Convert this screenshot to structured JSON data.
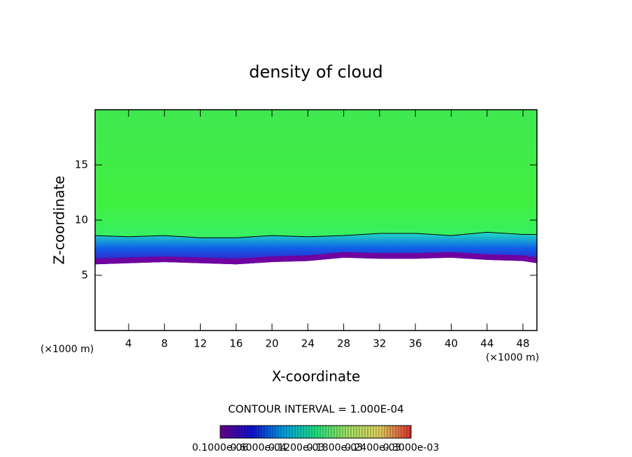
{
  "chart_data": {
    "type": "contour",
    "title": "density of cloud",
    "x_label": "X-coordinate",
    "y_label": "Z-coordinate",
    "x_unit": "(×1000 m)",
    "y_unit": "(×1000 m)",
    "xlim": [
      0.26,
      49.56
    ],
    "ylim": [
      0,
      20
    ],
    "xticks": [
      4,
      8,
      12,
      16,
      20,
      24,
      28,
      32,
      36,
      40,
      44,
      48
    ],
    "yticks": [
      5,
      10,
      15
    ],
    "x": [
      0.26,
      4,
      8,
      12,
      16,
      20,
      24,
      28,
      32,
      36,
      40,
      44,
      48,
      49.56
    ],
    "base": [
      6.0,
      6.1,
      6.2,
      6.1,
      6.0,
      6.2,
      6.3,
      6.6,
      6.5,
      6.5,
      6.6,
      6.4,
      6.3,
      6.1
    ],
    "contour": [
      8.6,
      8.5,
      8.6,
      8.4,
      8.4,
      8.6,
      8.5,
      8.6,
      8.8,
      8.8,
      8.6,
      8.9,
      8.7,
      8.7
    ],
    "contour_interval": "CONTOUR INTERVAL = 1.000E-04",
    "colorbar_colors": [
      "#6a0090",
      "#1010d0",
      "#00a0e0",
      "#20e080",
      "#a0e060",
      "#e0d060",
      "#e03030"
    ],
    "colorbar_labels": [
      "0.1000e-06",
      "0.6000e-04",
      "0.1200e-03",
      "0.1800e-03",
      "0.2400e-03",
      "0.3000e-03"
    ]
  }
}
